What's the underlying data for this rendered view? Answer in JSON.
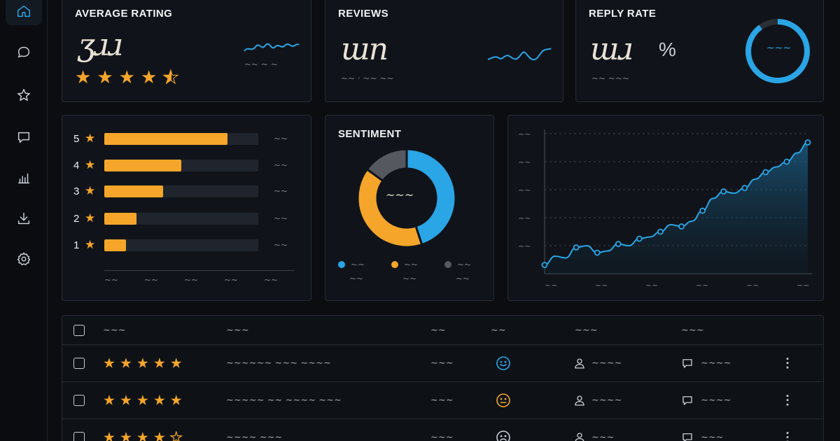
{
  "colors": {
    "accent": "#2aa5e6",
    "gold": "#f4a52a",
    "neutral": "#55595f",
    "background": "#0b0d11",
    "card": "#10141a"
  },
  "sidebar": {
    "items": [
      {
        "name": "home",
        "icon": "home-icon",
        "active": true
      },
      {
        "name": "messages",
        "icon": "chat-bubble-icon"
      },
      {
        "name": "favorites",
        "icon": "star-outline-icon"
      },
      {
        "name": "comments",
        "icon": "comment-icon"
      },
      {
        "name": "analytics",
        "icon": "bar-chart-icon"
      },
      {
        "name": "download",
        "icon": "download-icon"
      },
      {
        "name": "settings",
        "icon": "gear-icon"
      }
    ]
  },
  "kpis": {
    "average_rating": {
      "title": "AVERAGE RATING",
      "value": "ʒɹɹ",
      "rating": 4.5,
      "caption": "~~ ~ ~"
    },
    "reviews": {
      "title": "REVIEWS",
      "value": "ɯn",
      "caption": "~~ · ~~ ~~"
    },
    "reply_rate": {
      "title": "REPLY RATE",
      "value": "ɯɹ",
      "unit": "%",
      "ring_label": "~~~",
      "ring_fraction": 0.9,
      "caption": "~~ ~~~"
    }
  },
  "distribution": {
    "rows": [
      {
        "stars": "5",
        "fraction": 0.8,
        "count": "~~"
      },
      {
        "stars": "4",
        "fraction": 0.5,
        "count": "~~"
      },
      {
        "stars": "3",
        "fraction": 0.38,
        "count": "~~"
      },
      {
        "stars": "2",
        "fraction": 0.21,
        "count": "~~"
      },
      {
        "stars": "1",
        "fraction": 0.14,
        "count": "~~"
      }
    ],
    "axis_ticks": [
      "~~",
      "~~",
      "~~",
      "~~",
      "~~"
    ]
  },
  "sentiment": {
    "title": "SENTIMENT",
    "center_label": "~~~",
    "legend": [
      {
        "label": "~~",
        "sub": "~~",
        "color": "#2aa5e6"
      },
      {
        "label": "~~",
        "sub": "~~",
        "color": "#f4a52a"
      },
      {
        "label": "~~",
        "sub": "~~",
        "color": "#55595f"
      }
    ]
  },
  "chart_data": [
    {
      "type": "pie",
      "title": "SENTIMENT",
      "categories": [
        "positive",
        "neutral",
        "negative"
      ],
      "values": [
        45,
        40,
        15
      ]
    },
    {
      "type": "area",
      "x": [
        0,
        1,
        2,
        3,
        4,
        5,
        6,
        7,
        8,
        9,
        10,
        11,
        12,
        13,
        14,
        15,
        16,
        17,
        18,
        19,
        20,
        21,
        22,
        23,
        24,
        25
      ],
      "values": [
        0.5,
        1.0,
        0.9,
        1.5,
        1.6,
        1.2,
        1.3,
        1.7,
        1.6,
        2.0,
        2.1,
        2.4,
        2.8,
        2.7,
        3.0,
        3.6,
        4.3,
        4.7,
        4.6,
        4.9,
        5.4,
        5.8,
        6.1,
        6.4,
        6.9,
        7.5
      ],
      "marked_points": [
        0,
        3,
        5,
        7,
        9,
        11,
        13,
        15,
        17,
        19,
        21,
        23,
        25
      ],
      "ylim": [
        0,
        8
      ],
      "y_ticks": [
        "~~",
        "~~",
        "~~",
        "~~",
        "~~"
      ],
      "x_ticks": [
        "~~",
        "~~",
        "~~",
        "~~",
        "~~",
        "~~"
      ],
      "grid": true
    }
  ],
  "table": {
    "headers": [
      "~~~",
      "~~~",
      "~~",
      "~~",
      "~~~",
      "~~~"
    ],
    "rows": [
      {
        "rating": 5,
        "text": "~~~~~~ ~~~ ~~~~",
        "date": "~~~",
        "sentiment": "happy",
        "author": "~~~~",
        "reply": "~~~~"
      },
      {
        "rating": 5,
        "text": "~~~~~ ~~ ~~~~ ~~~",
        "date": "~~~",
        "sentiment": "neutral",
        "author": "~~~~",
        "reply": "~~~~"
      },
      {
        "rating": 4,
        "text": "~~~~ ~~~",
        "date": "~~~",
        "sentiment": "sad",
        "author": "~~~",
        "reply": "~~~"
      }
    ]
  }
}
